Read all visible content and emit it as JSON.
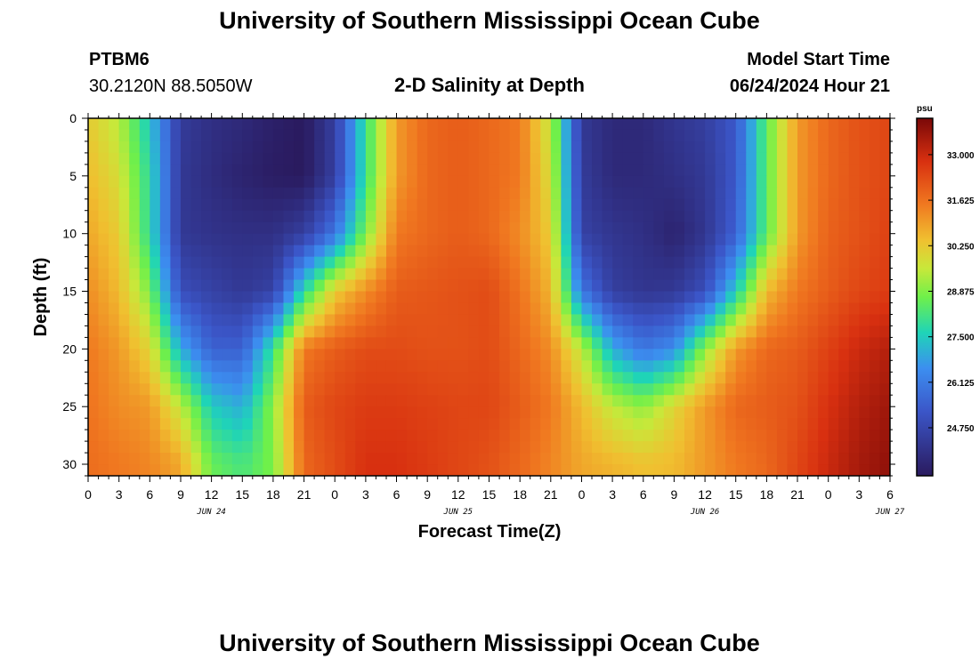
{
  "header": {
    "title": "University of Southern Mississippi Ocean Cube",
    "station": "PTBM6",
    "coords": "30.2120N  88.5050W",
    "subtitle": "2-D Salinity at Depth",
    "start_label": "Model Start Time",
    "start_value": "06/24/2024 Hour 21"
  },
  "footer": {
    "title": "University of Southern Mississippi Ocean Cube"
  },
  "chart_data": {
    "type": "heatmap",
    "title": "2-D Salinity at Depth",
    "xlabel": "Forecast Time(Z)",
    "ylabel": "Depth (ft)",
    "x_tick_labels": [
      "0",
      "3",
      "6",
      "9",
      "12",
      "15",
      "18",
      "21",
      "0",
      "3",
      "6",
      "9",
      "12",
      "15",
      "18",
      "21",
      "0",
      "3",
      "6",
      "9",
      "12",
      "15",
      "18",
      "21",
      "0",
      "3",
      "6"
    ],
    "day_labels": [
      {
        "label": "JUN 24",
        "hour": 12
      },
      {
        "label": "JUN 25",
        "hour": 36
      },
      {
        "label": "JUN 26",
        "hour": 60
      },
      {
        "label": "JUN 27",
        "hour": 78
      }
    ],
    "xlim_hours": [
      0,
      78
    ],
    "y_tick_labels": [
      "0",
      "5",
      "10",
      "15",
      "20",
      "25",
      "30"
    ],
    "y_ticks": [
      0,
      5,
      10,
      15,
      20,
      25,
      30
    ],
    "ylim": [
      0,
      31
    ],
    "y_inverted": true,
    "colorbar": {
      "unit": "psu",
      "range": [
        23.3,
        34.1
      ],
      "tick_labels": [
        "33.000",
        "31.625",
        "30.250",
        "28.875",
        "27.500",
        "26.125",
        "24.750"
      ],
      "ticks": [
        33.0,
        31.625,
        30.25,
        28.875,
        27.5,
        26.125,
        24.75
      ]
    },
    "column_hours": [
      0,
      3,
      6,
      9,
      12,
      15,
      18,
      21,
      24,
      27,
      30,
      33,
      36,
      39,
      42,
      45,
      48,
      51,
      54,
      57,
      60,
      63,
      66,
      69,
      72,
      75,
      78
    ],
    "row_depths": [
      0,
      5,
      10,
      15,
      20,
      25,
      30
    ],
    "salinity_psu": [
      [
        30.2,
        29.4,
        27.4,
        24.4,
        24.0,
        23.8,
        23.5,
        23.3,
        24.5,
        28.0,
        31.0,
        31.8,
        32.0,
        31.8,
        31.5,
        29.5,
        24.3,
        23.8,
        23.8,
        24.2,
        24.5,
        25.3,
        28.5,
        31.0,
        31.8,
        32.2,
        32.4
      ],
      [
        30.5,
        29.8,
        27.8,
        24.3,
        23.9,
        23.6,
        23.4,
        23.3,
        24.5,
        28.0,
        31.0,
        31.8,
        32.0,
        31.8,
        31.5,
        29.8,
        24.4,
        23.8,
        23.8,
        24.0,
        24.3,
        25.3,
        28.5,
        31.0,
        31.8,
        32.2,
        32.4
      ],
      [
        30.8,
        30.2,
        27.8,
        24.3,
        24.1,
        24.0,
        24.0,
        24.5,
        26.0,
        28.8,
        31.5,
        31.8,
        32.0,
        31.8,
        31.2,
        30.2,
        24.6,
        24.2,
        24.0,
        23.6,
        24.2,
        25.5,
        28.5,
        31.0,
        31.9,
        32.2,
        32.5
      ],
      [
        31.2,
        30.5,
        28.8,
        25.0,
        24.6,
        24.3,
        24.6,
        27.8,
        30.2,
        31.2,
        32.0,
        32.1,
        32.2,
        32.3,
        31.6,
        30.6,
        26.0,
        24.5,
        24.2,
        24.3,
        25.0,
        27.5,
        30.5,
        31.5,
        32.0,
        32.4,
        32.6
      ],
      [
        31.5,
        31.0,
        30.0,
        27.0,
        25.5,
        25.5,
        28.0,
        31.5,
        32.0,
        32.3,
        32.3,
        32.2,
        32.2,
        32.3,
        31.8,
        31.2,
        29.5,
        27.0,
        26.0,
        26.5,
        29.0,
        31.0,
        31.8,
        32.0,
        32.5,
        33.0,
        33.3
      ],
      [
        31.6,
        31.2,
        31.0,
        29.5,
        27.5,
        27.0,
        29.0,
        32.0,
        32.4,
        32.6,
        32.6,
        32.5,
        32.4,
        32.4,
        32.0,
        31.5,
        30.5,
        29.5,
        29.0,
        30.0,
        31.0,
        31.8,
        32.0,
        32.2,
        32.8,
        33.3,
        33.6
      ],
      [
        31.7,
        31.5,
        31.3,
        30.8,
        28.6,
        28.2,
        28.8,
        31.8,
        32.3,
        32.8,
        32.8,
        32.6,
        32.4,
        32.2,
        31.8,
        31.3,
        30.8,
        30.6,
        30.4,
        30.5,
        31.0,
        31.5,
        31.8,
        32.4,
        33.0,
        33.5,
        33.8
      ]
    ]
  }
}
